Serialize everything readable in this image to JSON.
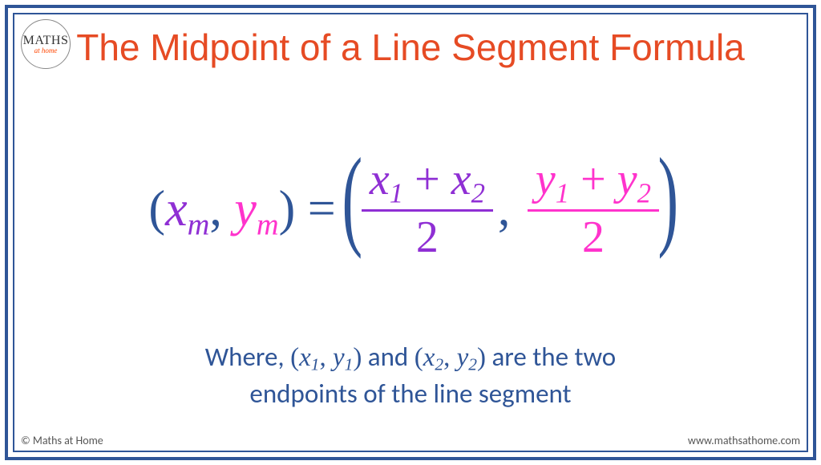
{
  "logo": {
    "top": "MATHS",
    "bottom": "at home"
  },
  "title": "The Midpoint of a Line Segment Formula",
  "colors": {
    "frame": "#2f5597",
    "title": "#e64b24",
    "base": "#2f5597",
    "purple": "#8f2fd4",
    "magenta": "#ff33cc",
    "footer": "#555555",
    "background": "#ffffff"
  },
  "formula": {
    "left": {
      "xvar": "x",
      "xsub": "m",
      "yvar": "y",
      "ysub": "m"
    },
    "eq": " = ",
    "fracX": {
      "t1var": "x",
      "t1sub": "1",
      "op": " + ",
      "t2var": "x",
      "t2sub": "2",
      "den": "2"
    },
    "fracY": {
      "t1var": "y",
      "t1sub": "1",
      "op": " + ",
      "t2var": "y",
      "t2sub": "2",
      "den": "2"
    },
    "sep": ", "
  },
  "explain": {
    "prefix": "Where,  ",
    "p1": {
      "xvar": "x",
      "xsub": "1",
      "yvar": "y",
      "ysub": "1"
    },
    "mid": " and ",
    "p2": {
      "xvar": "x",
      "xsub": "2",
      "yvar": "y",
      "ysub": "2"
    },
    "suffix1": " are the two",
    "line2": "endpoints of the line segment"
  },
  "footer": {
    "left": "© Maths at Home",
    "right": "www.mathsathome.com"
  },
  "typography": {
    "title_fontsize": 46,
    "formula_fontsize": 62,
    "frac_fontsize": 56,
    "explain_fontsize": 33,
    "footer_fontsize": 14
  }
}
